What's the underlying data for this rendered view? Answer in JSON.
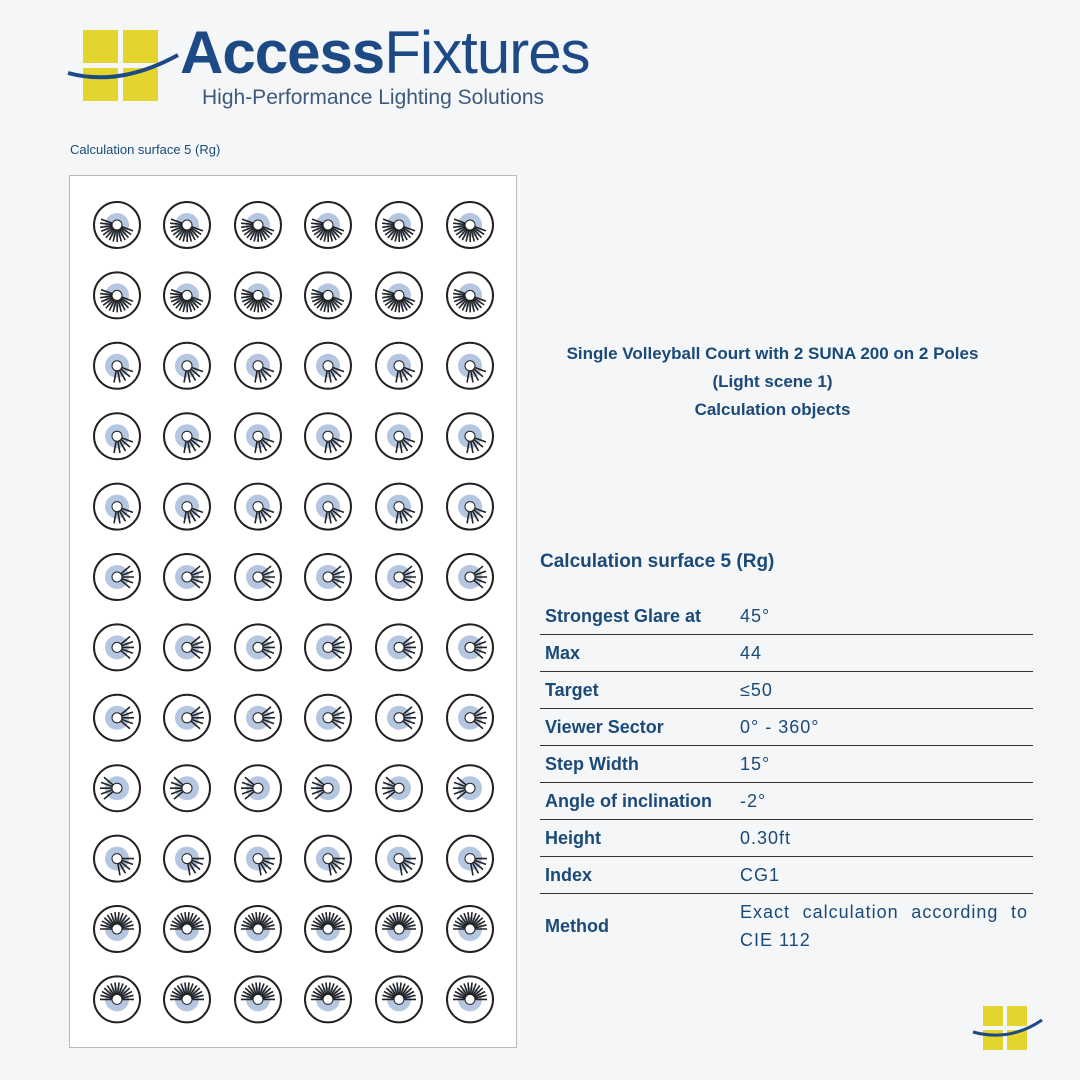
{
  "header": {
    "brand_main": "Access",
    "brand_accent": "Fixtures",
    "tagline": "High-Performance Lighting Solutions"
  },
  "section_label": "Calculation surface 5 (Rg)",
  "title_lines": [
    "Single Volleyball Court with 2 SUNA 200 on 2 Poles",
    "(Light scene 1)",
    "Calculation objects"
  ],
  "table": {
    "title": "Calculation surface 5 (Rg)",
    "rows": [
      [
        "Strongest Glare at",
        "45°"
      ],
      [
        "Max",
        "44"
      ],
      [
        "Target",
        "≤50"
      ],
      [
        "Viewer Sector",
        "0° - 360°"
      ],
      [
        "Step Width",
        "15°"
      ],
      [
        "Angle of inclination",
        "-2°"
      ],
      [
        "Height",
        "0.30ft"
      ],
      [
        "Index",
        "CG1"
      ],
      [
        "Method",
        "Exact calculation according to CIE 112"
      ]
    ]
  }
}
